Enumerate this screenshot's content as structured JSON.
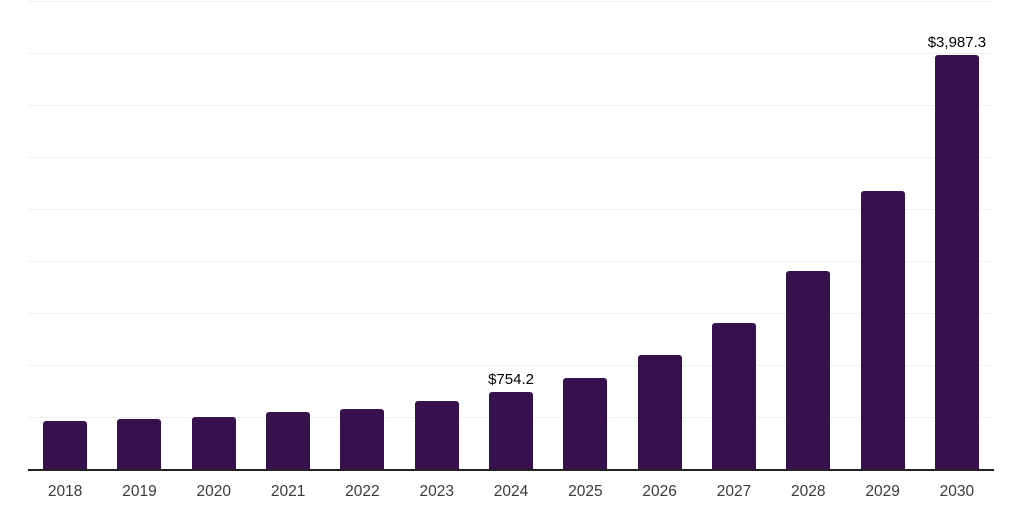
{
  "chart_data": {
    "type": "bar",
    "title": "",
    "xlabel": "",
    "ylabel": "",
    "categories": [
      "2018",
      "2019",
      "2020",
      "2021",
      "2022",
      "2023",
      "2024",
      "2025",
      "2026",
      "2027",
      "2028",
      "2029",
      "2030"
    ],
    "values": [
      470,
      490,
      510,
      558,
      585,
      660,
      754.2,
      885,
      1105,
      1415,
      1915,
      2685,
      3987.3
    ],
    "data_labels": {
      "2024": "$754.2",
      "2030": "$3,987.3"
    },
    "ylim": [
      0,
      4500
    ],
    "gridline_interval": 500,
    "grid": true,
    "legend": "none",
    "axis_labels_visible": {
      "x": true,
      "y": false
    },
    "colors": {
      "bar": "#37114E",
      "gridline": "#f0f0f2",
      "axis_line": "#222222",
      "tick_label": "#3a3a3a",
      "data_label": "#000000",
      "background": "#ffffff"
    }
  }
}
